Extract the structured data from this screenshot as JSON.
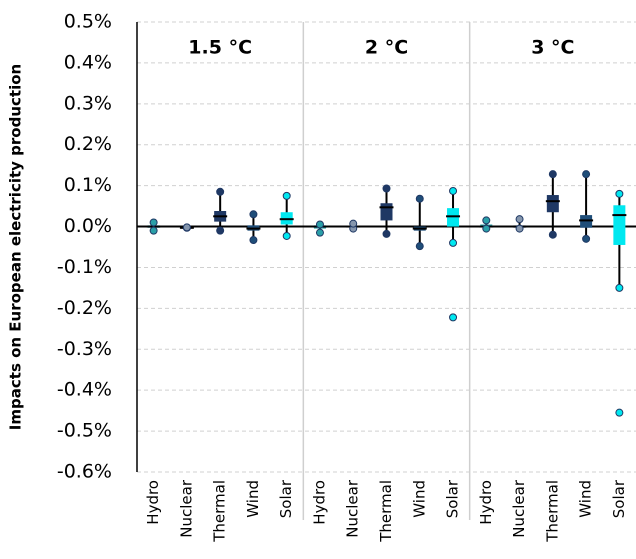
{
  "chart_data": {
    "type": "box",
    "ylabel": "Impacts on European electricity production",
    "ylim": [
      -0.6,
      0.5
    ],
    "yticks": [
      {
        "value": 0.5,
        "label": "0.5%"
      },
      {
        "value": 0.4,
        "label": "0.4%"
      },
      {
        "value": 0.3,
        "label": "0.3%"
      },
      {
        "value": 0.2,
        "label": "0.2%"
      },
      {
        "value": 0.1,
        "label": "0.1%"
      },
      {
        "value": 0,
        "label": "0.0%"
      },
      {
        "value": -0.1,
        "label": "-0.1%"
      },
      {
        "value": -0.2,
        "label": "-0.2%"
      },
      {
        "value": -0.3,
        "label": "-0.3%"
      },
      {
        "value": -0.4,
        "label": "-0.4%"
      },
      {
        "value": -0.5,
        "label": "-0.5%"
      },
      {
        "value": -0.6,
        "label": "-0.6%"
      }
    ],
    "grid": true,
    "categories": [
      "Hydro",
      "Nuclear",
      "Thermal",
      "Wind",
      "Solar"
    ],
    "colors": [
      "#2a9fa8",
      "#8596ad",
      "#1f3864",
      "#1f4e79",
      "#00e8f0"
    ],
    "panels": [
      {
        "title": "1.5 °C",
        "boxes": [
          {
            "min": -0.01,
            "q1": -0.003,
            "median": 0,
            "q3": 0.003,
            "max": 0.01
          },
          {
            "min": -0.003,
            "q1": -0.003,
            "median": -0.003,
            "q3": -0.002,
            "max": -0.002
          },
          {
            "min": -0.01,
            "q1": 0.012,
            "median": 0.025,
            "q3": 0.038,
            "max": 0.085
          },
          {
            "min": -0.033,
            "q1": -0.01,
            "median": -0.005,
            "q3": 0.003,
            "max": 0.03
          },
          {
            "min": -0.023,
            "q1": 0.005,
            "median": 0.018,
            "q3": 0.035,
            "max": 0.075
          }
        ]
      },
      {
        "title": "2 °C",
        "boxes": [
          {
            "min": -0.015,
            "q1": -0.005,
            "median": 0,
            "q3": 0.003,
            "max": 0.005
          },
          {
            "min": -0.005,
            "q1": -0.002,
            "median": 0,
            "q3": 0.002,
            "max": 0.007
          },
          {
            "min": -0.018,
            "q1": 0.015,
            "median": 0.047,
            "q3": 0.057,
            "max": 0.093
          },
          {
            "min": -0.048,
            "q1": -0.01,
            "median": -0.005,
            "q3": 0,
            "max": 0.068
          },
          {
            "min": -0.04,
            "q1": 0,
            "median": 0.025,
            "q3": 0.045,
            "max": 0.087,
            "outliers": [
              -0.222
            ]
          }
        ]
      },
      {
        "title": "3 °C",
        "boxes": [
          {
            "min": -0.005,
            "q1": -0.002,
            "median": 0,
            "q3": 0.005,
            "max": 0.015
          },
          {
            "min": -0.005,
            "q1": -0.003,
            "median": 0,
            "q3": 0.003,
            "max": 0.018
          },
          {
            "min": -0.02,
            "q1": 0.035,
            "median": 0.062,
            "q3": 0.077,
            "max": 0.128
          },
          {
            "min": -0.03,
            "q1": -0.003,
            "median": 0.015,
            "q3": 0.028,
            "max": 0.128
          },
          {
            "min": -0.15,
            "q1": -0.045,
            "median": 0.028,
            "q3": 0.052,
            "max": 0.08,
            "outliers": [
              -0.455
            ]
          }
        ]
      }
    ]
  }
}
